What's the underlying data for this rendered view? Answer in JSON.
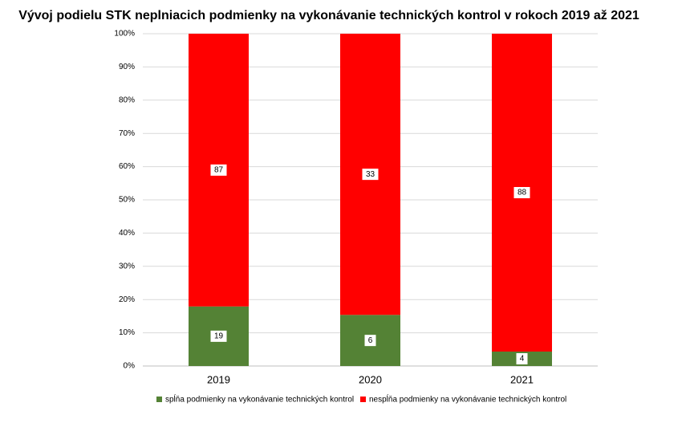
{
  "chart_data": {
    "type": "bar",
    "stacking": "percent",
    "title": "Vývoj podielu STK neplniacich podmienky na vykonávanie technických kontrol v rokoch 2019 až 2021",
    "categories": [
      "2019",
      "2020",
      "2021"
    ],
    "series": [
      {
        "name": "spĺňa podmienky na vykonávanie technických kontrol",
        "color": "#548235",
        "values": [
          19,
          6,
          4
        ]
      },
      {
        "name": "nespĺňa podmienky na vykonávanie technických kontrol",
        "color": "#ff0000",
        "values": [
          87,
          33,
          88
        ]
      }
    ],
    "ylim": [
      0,
      100
    ],
    "yticks": [
      {
        "value": 0,
        "label": "0%"
      },
      {
        "value": 10,
        "label": "10%"
      },
      {
        "value": 20,
        "label": "20%"
      },
      {
        "value": 30,
        "label": "30%"
      },
      {
        "value": 40,
        "label": "40%"
      },
      {
        "value": 50,
        "label": "50%"
      },
      {
        "value": 60,
        "label": "60%"
      },
      {
        "value": 70,
        "label": "70%"
      },
      {
        "value": 80,
        "label": "80%"
      },
      {
        "value": 90,
        "label": "90%"
      },
      {
        "value": 100,
        "label": "100%"
      }
    ],
    "grid": true,
    "legend": "bottom"
  }
}
